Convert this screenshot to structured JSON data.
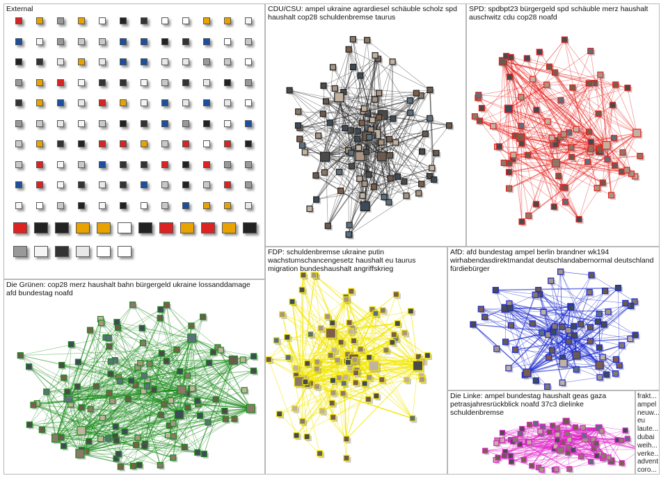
{
  "groups": [
    {
      "id": "external",
      "title": "External",
      "color": "#444444"
    },
    {
      "id": "cdu",
      "title": "CDU/CSU: ampel ukraine agrardiesel schäuble scholz spd haushalt cop28 schuldenbremse taurus",
      "color": "#222222"
    },
    {
      "id": "spd",
      "title": "SPD: spdbpt23 bürgergeld spd schäuble merz haushalt auschwitz cdu cop28 noafd",
      "color": "#e8211d"
    },
    {
      "id": "gruene",
      "title": "Die Grünen: cop28 merz haushalt bahn bürgergeld ukraine lossanddamage afd bundestag noafd",
      "color": "#1a8a1a"
    },
    {
      "id": "fdp",
      "title": "FDP: schuldenbremse ukraine putin wachstumschancengesetz haushalt eu taurus migration bundeshaushalt angriffskrieg",
      "color": "#f2e600"
    },
    {
      "id": "afd",
      "title": "AfD: afd bundestag ampel berlin brandner wk194 wirhabendasdirektmandat deutschlandabernormal deutschland fürdiebürger",
      "color": "#1c2bd0"
    },
    {
      "id": "linke",
      "title": "Die Linke: ampel bundestag haushalt geas gaza petrasjahresrückblick noafd 37c3 dielinke schuldenbremse",
      "color": "#e020c8"
    }
  ],
  "side_words": [
    "frakt...",
    "ampel",
    "neuw...",
    "eu",
    "laute...",
    "dubai",
    "weih...",
    "verke...",
    "advent",
    "coro..."
  ],
  "external_logos": [
    "SZ",
    "Bild",
    "SPD",
    "SPD",
    "S",
    "WELT",
    "Z",
    "T",
    "H",
    "N",
    "CDU",
    "jf",
    "ntv"
  ]
}
